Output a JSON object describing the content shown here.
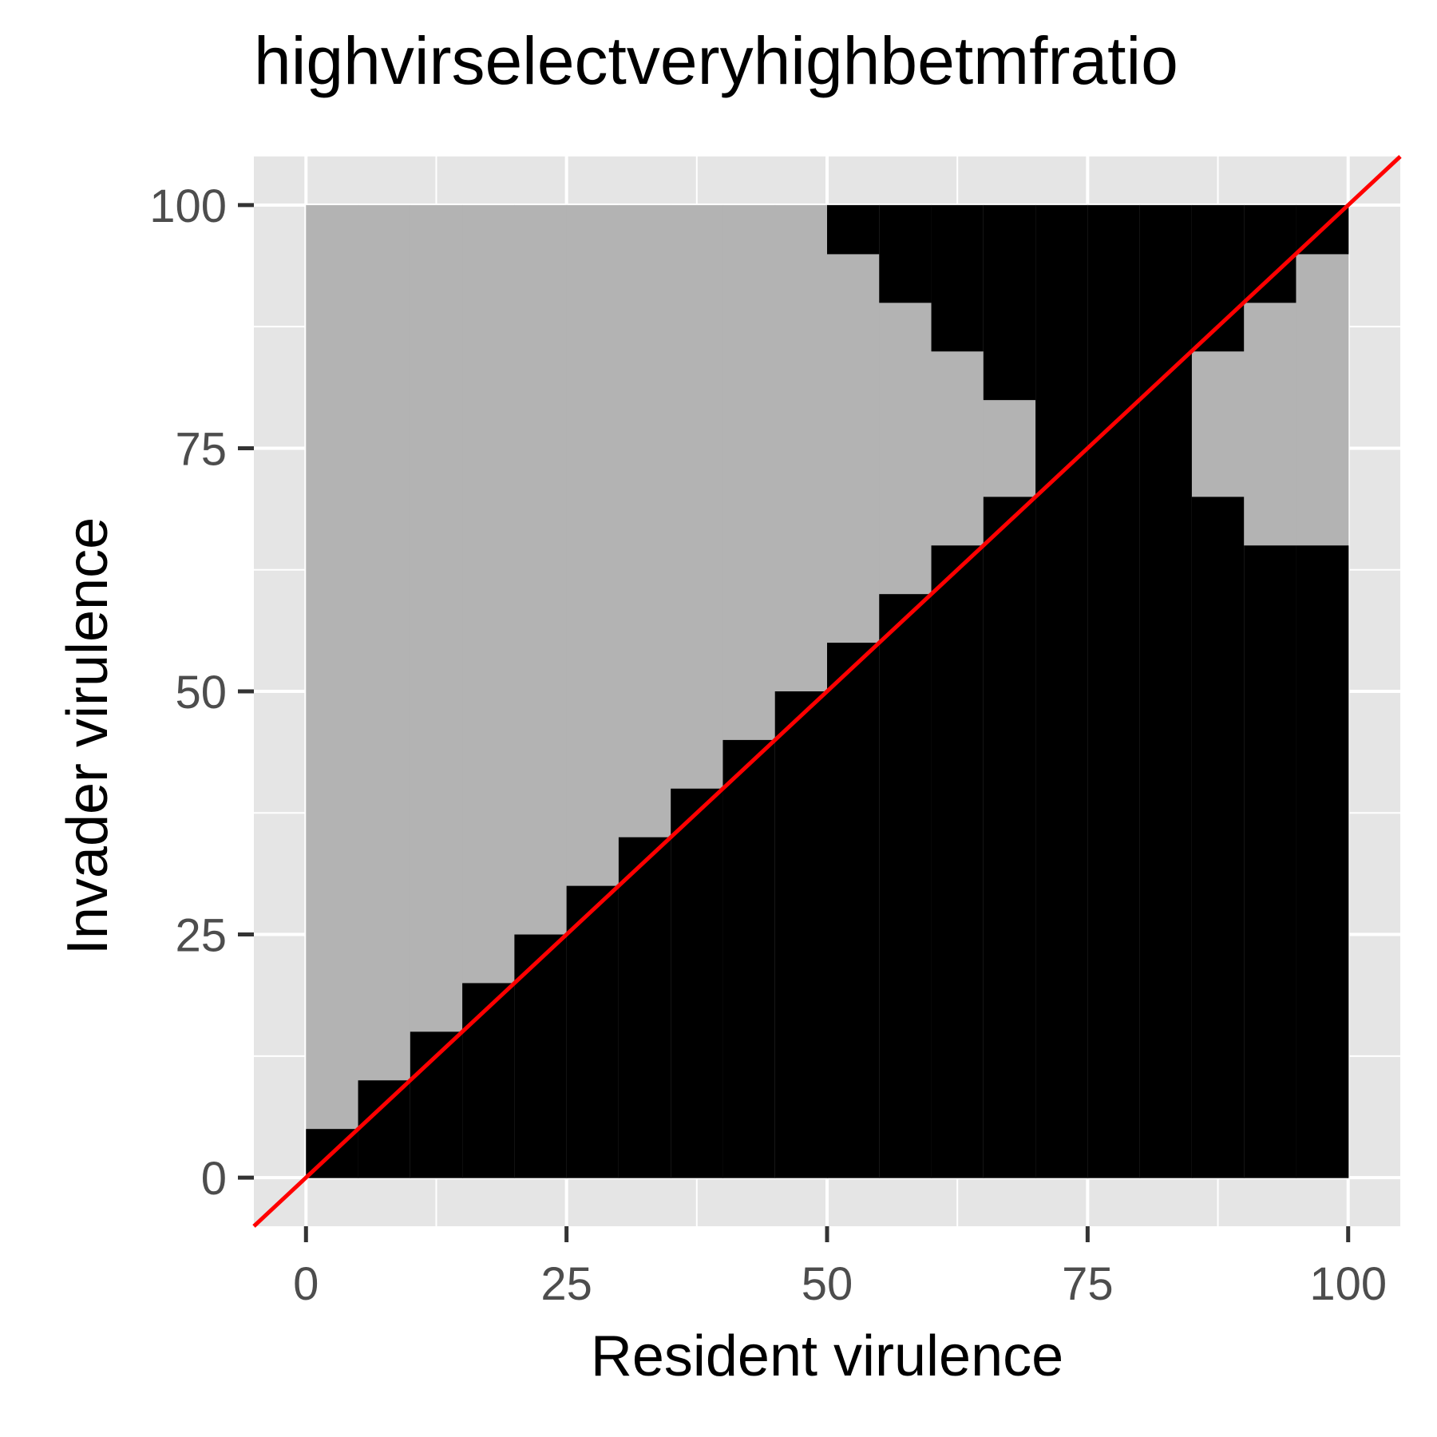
{
  "chart_data": {
    "type": "heatmap",
    "title": "highvirselectveryhighbetmfratio",
    "xlabel": "Resident virulence",
    "ylabel": "Invader virulence",
    "xlim": [
      -5,
      105
    ],
    "ylim": [
      -5,
      105
    ],
    "x_ticks": [
      "0",
      "25",
      "50",
      "75",
      "100"
    ],
    "y_ticks": [
      "0",
      "25",
      "50",
      "75",
      "100"
    ],
    "tick_values": [
      0,
      25,
      50,
      75,
      100
    ],
    "cell_width": 5,
    "grid": "on",
    "colors": {
      "invader_fails": "#000000",
      "invader_invades": "#b3b3b3",
      "diagonal": "#ff0000",
      "panel_background": "#e5e5e5",
      "gridline": "#ffffff",
      "axis_text": "#4d4d4d"
    },
    "diagonal_line": {
      "slope": 1,
      "intercept": 0
    },
    "columns": [
      {
        "resident_start": 0,
        "resident_end": 5,
        "black_below": 5,
        "black_above_from": null
      },
      {
        "resident_start": 5,
        "resident_end": 10,
        "black_below": 10,
        "black_above_from": null
      },
      {
        "resident_start": 10,
        "resident_end": 15,
        "black_below": 15,
        "black_above_from": null
      },
      {
        "resident_start": 15,
        "resident_end": 20,
        "black_below": 20,
        "black_above_from": null
      },
      {
        "resident_start": 20,
        "resident_end": 25,
        "black_below": 25,
        "black_above_from": null
      },
      {
        "resident_start": 25,
        "resident_end": 30,
        "black_below": 30,
        "black_above_from": null
      },
      {
        "resident_start": 30,
        "resident_end": 35,
        "black_below": 35,
        "black_above_from": null
      },
      {
        "resident_start": 35,
        "resident_end": 40,
        "black_below": 40,
        "black_above_from": null
      },
      {
        "resident_start": 40,
        "resident_end": 45,
        "black_below": 45,
        "black_above_from": null
      },
      {
        "resident_start": 45,
        "resident_end": 50,
        "black_below": 50,
        "black_above_from": null
      },
      {
        "resident_start": 50,
        "resident_end": 55,
        "black_below": 55,
        "black_above_from": 95
      },
      {
        "resident_start": 55,
        "resident_end": 60,
        "black_below": 60,
        "black_above_from": 90
      },
      {
        "resident_start": 60,
        "resident_end": 65,
        "black_below": 65,
        "black_above_from": 85
      },
      {
        "resident_start": 65,
        "resident_end": 70,
        "black_below": 70,
        "black_above_from": 80
      },
      {
        "resident_start": 70,
        "resident_end": 75,
        "black_below": 100,
        "black_above_from": null
      },
      {
        "resident_start": 75,
        "resident_end": 80,
        "black_below": 100,
        "black_above_from": null
      },
      {
        "resident_start": 80,
        "resident_end": 85,
        "black_below": 100,
        "black_above_from": null
      },
      {
        "resident_start": 85,
        "resident_end": 90,
        "black_below": 70,
        "black_above_from": 85
      },
      {
        "resident_start": 90,
        "resident_end": 95,
        "black_below": 65,
        "black_above_from": 90
      },
      {
        "resident_start": 95,
        "resident_end": 100,
        "black_below": 65,
        "black_above_from": 95
      }
    ],
    "y_top": 100
  }
}
